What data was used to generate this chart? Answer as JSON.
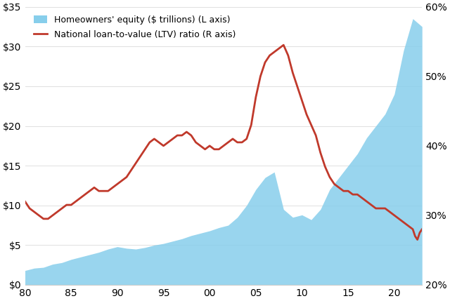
{
  "equity_years": [
    1980,
    1981,
    1982,
    1983,
    1984,
    1985,
    1986,
    1987,
    1988,
    1989,
    1990,
    1991,
    1992,
    1993,
    1994,
    1995,
    1996,
    1997,
    1998,
    1999,
    2000,
    2001,
    2002,
    2003,
    2004,
    2005,
    2006,
    2007,
    2008,
    2009,
    2010,
    2011,
    2012,
    2013,
    2014,
    2015,
    2016,
    2017,
    2018,
    2019,
    2020,
    2021,
    2022,
    2023
  ],
  "equity_values": [
    1.8,
    2.1,
    2.2,
    2.6,
    2.8,
    3.2,
    3.5,
    3.8,
    4.1,
    4.5,
    4.8,
    4.6,
    4.5,
    4.7,
    5.0,
    5.2,
    5.5,
    5.8,
    6.2,
    6.5,
    6.8,
    7.2,
    7.5,
    8.5,
    10.0,
    12.0,
    13.5,
    14.2,
    9.5,
    8.5,
    8.8,
    8.2,
    9.5,
    12.0,
    13.5,
    15.0,
    16.5,
    18.5,
    20.0,
    21.5,
    24.0,
    29.5,
    33.5,
    32.5
  ],
  "ltv_years": [
    1980.0,
    1980.5,
    1981.0,
    1981.5,
    1982.0,
    1982.5,
    1983.0,
    1983.5,
    1984.0,
    1984.5,
    1985.0,
    1985.5,
    1986.0,
    1986.5,
    1987.0,
    1987.5,
    1988.0,
    1988.5,
    1989.0,
    1989.5,
    1990.0,
    1990.5,
    1991.0,
    1991.5,
    1992.0,
    1992.5,
    1993.0,
    1993.5,
    1994.0,
    1994.5,
    1995.0,
    1995.5,
    1996.0,
    1996.5,
    1997.0,
    1997.5,
    1998.0,
    1998.5,
    1999.0,
    1999.5,
    2000.0,
    2000.5,
    2001.0,
    2001.5,
    2002.0,
    2002.5,
    2003.0,
    2003.5,
    2004.0,
    2004.5,
    2005.0,
    2005.5,
    2006.0,
    2006.5,
    2007.0,
    2007.5,
    2008.0,
    2008.5,
    2009.0,
    2009.5,
    2010.0,
    2010.5,
    2011.0,
    2011.5,
    2012.0,
    2012.5,
    2013.0,
    2013.5,
    2014.0,
    2014.5,
    2015.0,
    2015.5,
    2016.0,
    2016.5,
    2017.0,
    2017.5,
    2018.0,
    2018.5,
    2019.0,
    2019.5,
    2020.0,
    2020.5,
    2021.0,
    2021.5,
    2022.0,
    2022.25,
    2022.5,
    2022.75,
    2023.0
  ],
  "ltv_values": [
    32.0,
    31.0,
    30.5,
    30.0,
    29.5,
    29.5,
    30.0,
    30.5,
    31.0,
    31.5,
    31.5,
    32.0,
    32.5,
    33.0,
    33.5,
    34.0,
    33.5,
    33.5,
    33.5,
    34.0,
    34.5,
    35.0,
    35.5,
    36.5,
    37.5,
    38.5,
    39.5,
    40.5,
    41.0,
    40.5,
    40.0,
    40.5,
    41.0,
    41.5,
    41.5,
    42.0,
    41.5,
    40.5,
    40.0,
    39.5,
    40.0,
    39.5,
    39.5,
    40.0,
    40.5,
    41.0,
    40.5,
    40.5,
    41.0,
    43.0,
    47.0,
    50.0,
    52.0,
    53.0,
    53.5,
    54.0,
    54.5,
    53.0,
    50.5,
    48.5,
    46.5,
    44.5,
    43.0,
    41.5,
    39.0,
    37.0,
    35.5,
    34.5,
    34.0,
    33.5,
    33.5,
    33.0,
    33.0,
    32.5,
    32.0,
    31.5,
    31.0,
    31.0,
    31.0,
    30.5,
    30.0,
    29.5,
    29.0,
    28.5,
    28.0,
    27.0,
    26.5,
    27.5,
    28.0
  ],
  "equity_color": "#87CEEB",
  "equity_edge_color": "#5ba3d0",
  "ltv_color": "#C0392B",
  "left_ylim": [
    0,
    35
  ],
  "right_ylim": [
    20,
    60
  ],
  "left_yticks": [
    0,
    5,
    10,
    15,
    20,
    25,
    30,
    35
  ],
  "left_yticklabels": [
    "$0",
    "$5",
    "$10",
    "$15",
    "$20",
    "$25",
    "$30",
    "$35"
  ],
  "right_yticks": [
    20,
    30,
    40,
    50,
    60
  ],
  "right_yticklabels": [
    "20%",
    "30%",
    "40%",
    "50%",
    "60%"
  ],
  "xlim": [
    1980,
    2023
  ],
  "xticks": [
    80,
    85,
    90,
    95,
    100,
    105,
    110,
    115,
    120
  ],
  "xticklabels": [
    "80",
    "85",
    "90",
    "95",
    "00",
    "05",
    "10",
    "15",
    "20"
  ],
  "legend_equity_label": "Homeowners' equity ($ trillions) (L axis)",
  "legend_ltv_label": "National loan-to-value (LTV) ratio (R axis)",
  "ltv_linewidth": 2.0,
  "bg_color": "#ffffff"
}
